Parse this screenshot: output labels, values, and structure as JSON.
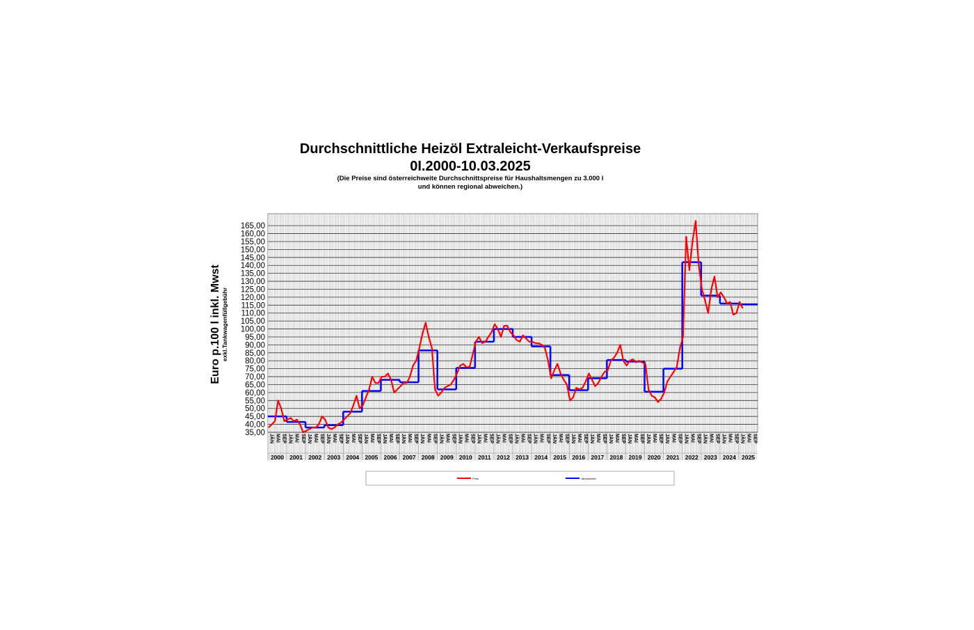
{
  "chart_data": {
    "type": "line",
    "title": "Durchschnittliche Heizöl Extraleicht-Verkaufspreise",
    "subtitle": "0I.2000-10.03.2025",
    "note_line1": "(Die Preise sind österreichweite Durchschnittspreise für Haushaltsmengen zu 3.000 l",
    "note_line2": "und können regional abweichen.)",
    "y_label": "Euro p.100 l inkl. Mwst",
    "y_sublabel": "exkl.Tankwagenfüllgebühr",
    "years": [
      "2000",
      "2001",
      "2002",
      "2003",
      "2004",
      "2005",
      "2006",
      "2007",
      "2008",
      "2009",
      "2010",
      "2011",
      "2012",
      "2013",
      "2014",
      "2015",
      "2016",
      "2017",
      "2018",
      "2019",
      "2020",
      "2021",
      "2022",
      "2023",
      "2024",
      "2025"
    ],
    "month_labels": [
      "JÄN",
      "MAI",
      "SEP"
    ],
    "ylim": [
      35,
      172.5
    ],
    "yticks": [
      {
        "value": 35,
        "label": "35,00"
      },
      {
        "value": 40,
        "label": "40,00"
      },
      {
        "value": 45,
        "label": "45,00"
      },
      {
        "value": 50,
        "label": "50,00"
      },
      {
        "value": 55,
        "label": "55,00"
      },
      {
        "value": 60,
        "label": "60,00"
      },
      {
        "value": 65,
        "label": "65,00"
      },
      {
        "value": 70,
        "label": "70,00"
      },
      {
        "value": 75,
        "label": "75,00"
      },
      {
        "value": 80,
        "label": "80,00"
      },
      {
        "value": 85,
        "label": "85,00"
      },
      {
        "value": 90,
        "label": "90,00"
      },
      {
        "value": 95,
        "label": "95,00"
      },
      {
        "value": 100,
        "label": "100,00"
      },
      {
        "value": 105,
        "label": "105,00"
      },
      {
        "value": 110,
        "label": "110,00"
      },
      {
        "value": 115,
        "label": "115,00"
      },
      {
        "value": 120,
        "label": "120,00"
      },
      {
        "value": 125,
        "label": "125,00"
      },
      {
        "value": 130,
        "label": "130,00"
      },
      {
        "value": 135,
        "label": "135,00"
      },
      {
        "value": 140,
        "label": "140,00"
      },
      {
        "value": 145,
        "label": "145,00"
      },
      {
        "value": 150,
        "label": "150,00"
      },
      {
        "value": 155,
        "label": "155,00"
      },
      {
        "value": 160,
        "label": "160,00"
      },
      {
        "value": 165,
        "label": "165,00"
      }
    ],
    "grid": true,
    "series": [
      {
        "name": "Preis",
        "color": "#ff0000",
        "x": [
          "2000-01",
          "2000-03",
          "2000-05",
          "2000-07",
          "2000-09",
          "2000-11",
          "2001-01",
          "2001-03",
          "2001-05",
          "2001-07",
          "2001-09",
          "2001-11",
          "2002-01",
          "2002-03",
          "2002-05",
          "2002-07",
          "2002-09",
          "2002-11",
          "2003-01",
          "2003-03",
          "2003-05",
          "2003-07",
          "2003-09",
          "2003-11",
          "2004-01",
          "2004-03",
          "2004-05",
          "2004-07",
          "2004-09",
          "2004-11",
          "2005-01",
          "2005-03",
          "2005-05",
          "2005-07",
          "2005-09",
          "2005-11",
          "2006-01",
          "2006-03",
          "2006-05",
          "2006-07",
          "2006-09",
          "2006-11",
          "2007-01",
          "2007-03",
          "2007-05",
          "2007-07",
          "2007-09",
          "2007-11",
          "2008-01",
          "2008-03",
          "2008-05",
          "2008-07",
          "2008-09",
          "2008-11",
          "2009-01",
          "2009-03",
          "2009-05",
          "2009-07",
          "2009-09",
          "2009-11",
          "2010-01",
          "2010-03",
          "2010-05",
          "2010-07",
          "2010-09",
          "2010-11",
          "2011-01",
          "2011-03",
          "2011-05",
          "2011-07",
          "2011-09",
          "2011-11",
          "2012-01",
          "2012-03",
          "2012-05",
          "2012-07",
          "2012-09",
          "2012-11",
          "2013-01",
          "2013-03",
          "2013-05",
          "2013-07",
          "2013-09",
          "2013-11",
          "2014-01",
          "2014-03",
          "2014-05",
          "2014-07",
          "2014-09",
          "2014-11",
          "2015-01",
          "2015-03",
          "2015-05",
          "2015-07",
          "2015-09",
          "2015-11",
          "2016-01",
          "2016-03",
          "2016-05",
          "2016-07",
          "2016-09",
          "2016-11",
          "2017-01",
          "2017-03",
          "2017-05",
          "2017-07",
          "2017-09",
          "2017-11",
          "2018-01",
          "2018-03",
          "2018-05",
          "2018-07",
          "2018-09",
          "2018-11",
          "2019-01",
          "2019-03",
          "2019-05",
          "2019-07",
          "2019-09",
          "2019-11",
          "2020-01",
          "2020-03",
          "2020-05",
          "2020-07",
          "2020-09",
          "2020-11",
          "2021-01",
          "2021-03",
          "2021-05",
          "2021-07",
          "2021-09",
          "2021-11",
          "2022-01",
          "2022-03",
          "2022-05",
          "2022-07",
          "2022-09",
          "2022-11",
          "2023-01",
          "2023-03",
          "2023-05",
          "2023-07",
          "2023-09",
          "2023-11",
          "2024-01",
          "2024-03",
          "2024-05",
          "2024-07",
          "2024-09",
          "2024-11",
          "2025-01",
          "2025-03"
        ],
        "values": [
          38,
          40,
          42,
          55,
          50,
          42,
          43,
          44,
          42,
          43,
          40,
          35,
          36,
          37,
          38,
          38,
          40,
          45,
          43,
          38,
          37,
          38,
          40,
          41,
          43,
          45,
          47,
          52,
          58,
          50,
          52,
          57,
          62,
          70,
          66,
          66,
          70,
          70,
          72,
          68,
          60,
          62,
          64,
          66,
          66,
          70,
          77,
          80,
          88,
          97,
          104,
          95,
          88,
          62,
          58,
          60,
          63,
          64,
          65,
          68,
          72,
          77,
          78,
          76,
          76,
          84,
          92,
          95,
          91,
          92,
          95,
          98,
          103,
          100,
          95,
          102,
          102,
          98,
          96,
          93,
          92,
          96,
          94,
          92,
          92,
          91,
          91,
          90,
          88,
          80,
          69,
          74,
          78,
          72,
          68,
          65,
          55,
          57,
          63,
          62,
          63,
          67,
          72,
          68,
          64,
          66,
          70,
          73,
          74,
          80,
          82,
          85,
          90,
          80,
          77,
          80,
          81,
          79,
          80,
          79,
          78,
          62,
          58,
          57,
          54,
          56,
          60,
          67,
          70,
          73,
          76,
          88,
          95,
          158,
          137,
          155,
          168,
          140,
          125,
          118,
          110,
          125,
          133,
          120,
          123,
          120,
          116,
          117,
          109,
          110,
          117,
          113
        ]
      },
      {
        "name": "Jahresmittel",
        "color": "#0000ff",
        "x": [
          "2000",
          "2001",
          "2002",
          "2003",
          "2004",
          "2005",
          "2006",
          "2007",
          "2008",
          "2009",
          "2010",
          "2011",
          "2012",
          "2013",
          "2014",
          "2015",
          "2016",
          "2017",
          "2018",
          "2019",
          "2020",
          "2021",
          "2022",
          "2023",
          "2024",
          "2025"
        ],
        "values": [
          45,
          41.5,
          38,
          39.5,
          48,
          61,
          68,
          66.5,
          86.5,
          62,
          75.5,
          92,
          100,
          95,
          89,
          71,
          61.5,
          69,
          80.5,
          79.5,
          60.5,
          75,
          142,
          121,
          116,
          115.5
        ]
      }
    ]
  }
}
